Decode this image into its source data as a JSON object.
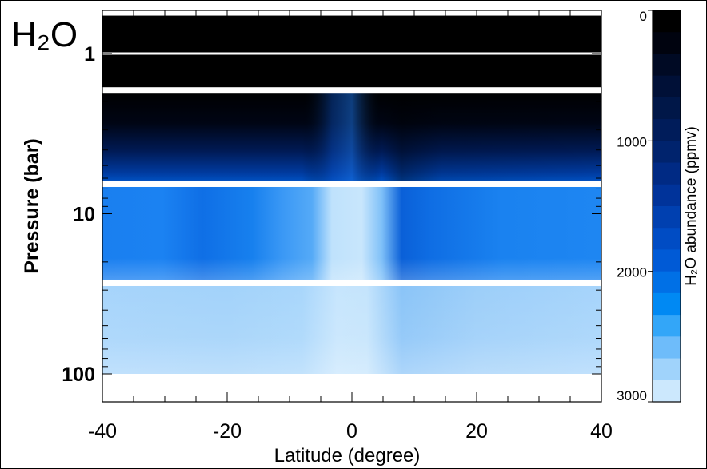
{
  "chart_data": {
    "type": "heatmap",
    "molecule_label": "H₂O",
    "molecule_label_color": "#7fd9c3",
    "xlabel": "Latitude (degree)",
    "ylabel": "Pressure (bar)",
    "x_range": [
      -40,
      40
    ],
    "x_ticks": [
      -40,
      -20,
      0,
      20,
      40
    ],
    "x_tick_labels": [
      "-40",
      "-20",
      "0",
      "20",
      "40"
    ],
    "y_scale": "log",
    "y_range": [
      0.5,
      200
    ],
    "y_inverted": true,
    "y_ticks": [
      1,
      10,
      100
    ],
    "y_tick_labels": [
      "1",
      "10",
      "100"
    ],
    "colorbar": {
      "label": "H₂O abundance (ppmv)",
      "range": [
        0,
        3000
      ],
      "ticks": [
        0,
        1000,
        2000,
        3000
      ],
      "tick_labels": [
        "0",
        "1000",
        "2000",
        "3000"
      ],
      "colors": [
        "#000000",
        "#00030f",
        "#000a24",
        "#001037",
        "#001748",
        "#001c5a",
        "#00236d",
        "#002a84",
        "#00339a",
        "#0040b0",
        "#004cc4",
        "#005ad6",
        "#0070e6",
        "#0089f3",
        "#33a6f8",
        "#6ebcfa",
        "#a0d3fb",
        "#cce8fd"
      ]
    },
    "white_bands_bar": [
      1,
      1.7,
      6.5,
      27
    ],
    "layers": [
      {
        "p_top": 0.6,
        "p_bottom": 1.7,
        "abundance_ppmv": 0
      },
      {
        "p_top": 1.7,
        "p_bottom": 6.5,
        "abundance_ppmv": "increasing with depth, approx. 0-1200"
      },
      {
        "p_top": 6.5,
        "p_bottom": 27,
        "abundance_ppmv": "approx. 2300-2600 (lower near 10°)"
      },
      {
        "p_top": 27,
        "p_bottom": 100,
        "abundance_ppmv": "approx. 2700-2900"
      }
    ],
    "grid": false
  }
}
